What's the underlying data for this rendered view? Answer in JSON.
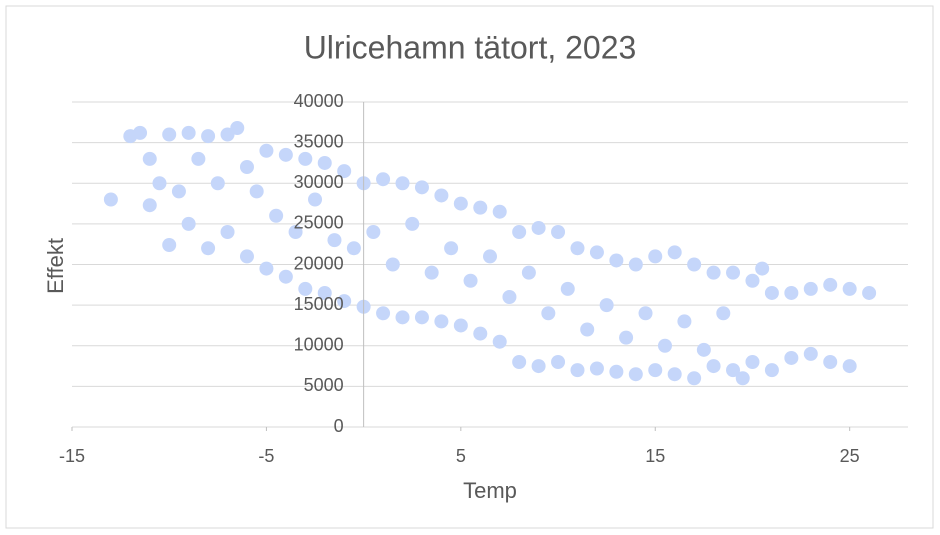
{
  "chart_data": {
    "type": "scatter",
    "title": "Ulricehamn tätort, 2023",
    "x_label": "Temp",
    "y_label": "Effekt",
    "color": "#c5d6fa",
    "xlim": [
      -15,
      28
    ],
    "xticks": [
      -15,
      -5,
      5,
      15,
      25
    ],
    "ylim": [
      0,
      40000
    ],
    "yticks": [
      0,
      5000,
      10000,
      15000,
      20000,
      25000,
      30000,
      35000,
      40000
    ],
    "grid": true,
    "x": [
      -13,
      -12,
      -11.5,
      -11,
      -11,
      -10.5,
      -10,
      -10,
      -9.5,
      -9,
      -9,
      -8.5,
      -8,
      -8,
      -7.5,
      -7,
      -7,
      -6.5,
      -6,
      -6,
      -5.5,
      -5,
      -5,
      -4.5,
      -4,
      -4,
      -3.5,
      -3,
      -3,
      -2.5,
      -2,
      -2,
      -1.5,
      -1,
      -1,
      -0.5,
      0,
      0,
      0.5,
      1,
      1,
      1.5,
      2,
      2,
      2.5,
      3,
      3,
      3.5,
      4,
      4,
      4.5,
      5,
      5,
      5.5,
      6,
      6,
      6.5,
      7,
      7,
      7.5,
      8,
      8,
      8.5,
      9,
      9,
      9.5,
      10,
      10,
      10.5,
      11,
      11,
      11.5,
      12,
      12,
      12.5,
      13,
      13,
      13.5,
      14,
      14,
      14.5,
      15,
      15,
      15.5,
      16,
      16,
      16.5,
      17,
      17,
      17.5,
      18,
      18,
      18.5,
      19,
      19,
      19.5,
      20,
      20,
      20.5,
      21,
      21,
      22,
      22,
      23,
      23,
      24,
      24,
      25,
      25,
      26
    ],
    "y": [
      28000,
      35800,
      36200,
      33000,
      27300,
      30000,
      36000,
      22400,
      29000,
      36200,
      25000,
      33000,
      35800,
      22000,
      30000,
      36000,
      24000,
      36800,
      32000,
      21000,
      29000,
      34000,
      19500,
      26000,
      33500,
      18500,
      24000,
      33000,
      17000,
      28000,
      32500,
      16500,
      23000,
      31500,
      15500,
      22000,
      30000,
      14800,
      24000,
      30500,
      14000,
      20000,
      30000,
      13500,
      25000,
      29500,
      13500,
      19000,
      28500,
      13000,
      22000,
      27500,
      12500,
      18000,
      27000,
      11500,
      21000,
      26500,
      10500,
      16000,
      24000,
      8000,
      19000,
      24500,
      7500,
      14000,
      24000,
      8000,
      17000,
      22000,
      7000,
      12000,
      21500,
      7200,
      15000,
      20500,
      6800,
      11000,
      20000,
      6500,
      14000,
      21000,
      7000,
      10000,
      21500,
      6500,
      13000,
      20000,
      6000,
      9500,
      19000,
      7500,
      14000,
      19000,
      7000,
      6000,
      18000,
      8000,
      19500,
      16500,
      7000,
      16500,
      8500,
      17000,
      9000,
      17500,
      8000,
      17000,
      7500,
      16500
    ]
  }
}
